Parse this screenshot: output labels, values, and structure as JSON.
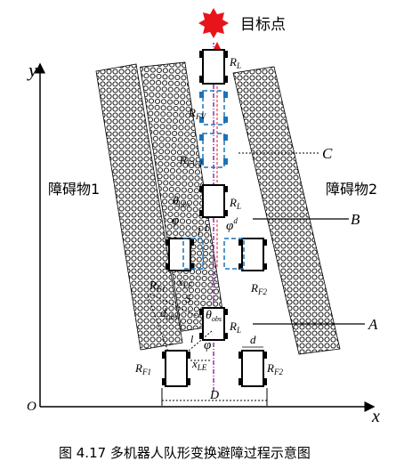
{
  "goal_label": "目标点",
  "obstacle1_label": "障碍物1",
  "obstacle2_label": "障碍物2",
  "caption": "图 4.17  多机器人队形变换避障过程示意图",
  "axes": {
    "x": "x",
    "y": "y",
    "origin": "O"
  },
  "labels": {
    "A": "A",
    "B": "B",
    "C": "C",
    "RL": "R",
    "RL_sub": "L",
    "RF1": "R",
    "RF1_sub": "F1",
    "RF2": "R",
    "RF2_sub": "F2",
    "RFV": "R",
    "RFV_sub": "FV",
    "RFV2_sub": "FV 2",
    "theta": "θ",
    "theta_sub": "obs",
    "phi": "φ",
    "phi_d": "φ",
    "phi_d_sup": "d",
    "l": "l",
    "l_d": "l",
    "x": "x",
    "x_sub": "LE",
    "S": "S",
    "d": "d",
    "d_sub": "obs",
    "D": "D",
    "dd": "d"
  },
  "colors": {
    "goal": "#e8141c",
    "path": "#8b2fb5",
    "arrow": "#e8141c",
    "dashed_robot": "#1a73b8"
  }
}
